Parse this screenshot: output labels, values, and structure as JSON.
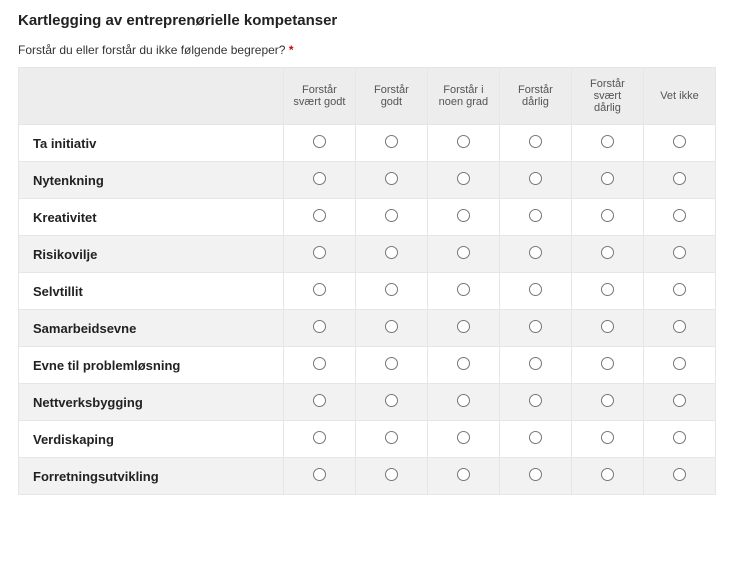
{
  "title": "Kartlegging av entreprenørielle kompetanser",
  "question": "Forstår du eller forstår du ikke følgende begreper?",
  "required_mark": "*",
  "columns": [
    "Forstår svært godt",
    "Forstår godt",
    "Forstår i noen grad",
    "Forstår dårlig",
    "Forstår svært dårlig",
    "Vet ikke"
  ],
  "rows": [
    "Ta initiativ",
    "Nytenkning",
    "Kreativitet",
    "Risikovilje",
    "Selvtillit",
    "Samarbeidsevne",
    "Evne til problemløsning",
    "Nettverksbygging",
    "Verdiskaping",
    "Forretningsutvikling"
  ],
  "colors": {
    "header_bg": "#ededed",
    "row_alt_bg": "#f2f2f2",
    "border": "#e6e6e6",
    "required": "#d00"
  }
}
